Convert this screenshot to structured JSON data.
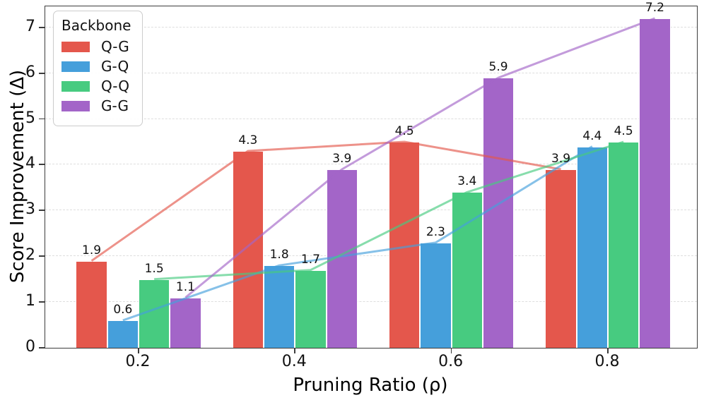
{
  "chart_data": {
    "type": "bar",
    "title": "",
    "xlabel": "Pruning Ratio (ρ)",
    "ylabel": "Score Improvement (Δ)",
    "categories": [
      "0.2",
      "0.4",
      "0.6",
      "0.8"
    ],
    "series": [
      {
        "name": "Q-G",
        "color": "#e4574c",
        "line_color": "#ef8178",
        "values": [
          1.9,
          4.3,
          4.5,
          3.9
        ]
      },
      {
        "name": "G-Q",
        "color": "#459fdb",
        "line_color": "#74b8e5",
        "values": [
          0.6,
          1.8,
          2.3,
          4.4
        ]
      },
      {
        "name": "Q-Q",
        "color": "#47cb80",
        "line_color": "#74d8a0",
        "values": [
          1.5,
          1.7,
          3.4,
          4.5
        ]
      },
      {
        "name": "G-G",
        "color": "#a365c8",
        "line_color": "#b685d5",
        "values": [
          1.1,
          3.9,
          5.9,
          7.2
        ]
      }
    ],
    "bar_value_labels": [
      [
        "1.9",
        "4.3",
        "4.5",
        "3.9"
      ],
      [
        "0.6",
        "1.8",
        "2.3",
        "4.4"
      ],
      [
        "1.5",
        "1.7",
        "3.4",
        "4.5"
      ],
      [
        "1.1",
        "3.9",
        "5.9",
        "7.2"
      ]
    ],
    "yticks": [
      0,
      1,
      2,
      3,
      4,
      5,
      6,
      7
    ],
    "ylim": [
      0,
      7.46
    ],
    "grid": "horizontal-dashed",
    "grid_color": "#dedede",
    "overlay_lines": true,
    "legend": {
      "title": "Backbone",
      "position": "upper-left",
      "entries": [
        "Q-G",
        "G-Q",
        "Q-Q",
        "G-G"
      ]
    }
  }
}
